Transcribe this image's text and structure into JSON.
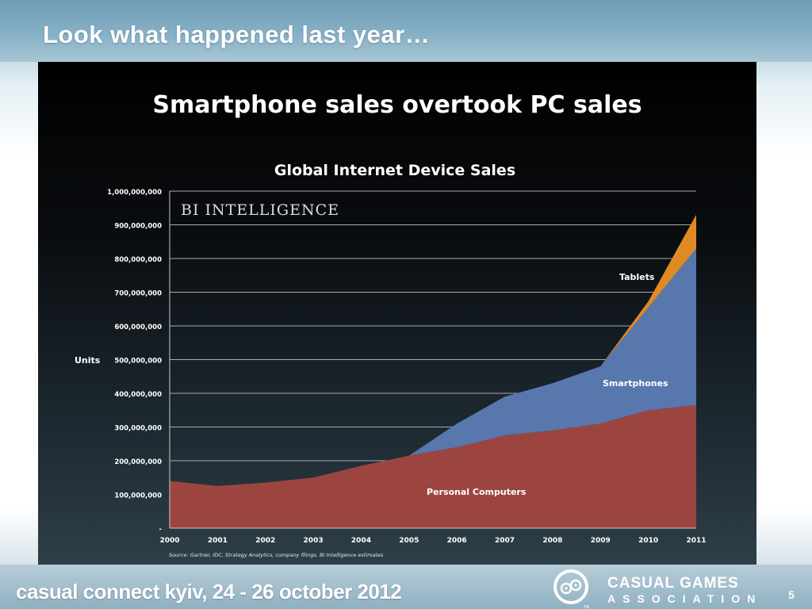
{
  "slide": {
    "title": "Look what happened last year…",
    "page_number": "5"
  },
  "footer": {
    "event": "casual connect kyiv, 24 - 26 october 2012",
    "org_line1": "CASUAL GAMES",
    "org_line2": "ASSOCIATION",
    "trademark": "TM"
  },
  "chart_data": {
    "type": "area",
    "headline": "Smartphone sales overtook PC sales",
    "title": "Global Internet Device Sales",
    "watermark": "BI INTELLIGENCE",
    "ylabel": "Units",
    "xlabel": "",
    "source": "Source: Gartner, IDC, Strategy Analytics, company filings, BI Intelligence estimates",
    "stacked": true,
    "ylim": [
      0,
      1000000000
    ],
    "y_ticks": [
      0,
      100000000,
      200000000,
      300000000,
      400000000,
      500000000,
      600000000,
      700000000,
      800000000,
      900000000,
      1000000000
    ],
    "y_tick_labels": [
      "-",
      "100,000,000",
      "200,000,000",
      "300,000,000",
      "400,000,000",
      "500,000,000",
      "600,000,000",
      "700,000,000",
      "800,000,000",
      "900,000,000",
      "1,000,000,000"
    ],
    "grid": true,
    "categories": [
      "2000",
      "2001",
      "2002",
      "2003",
      "2004",
      "2005",
      "2006",
      "2007",
      "2008",
      "2009",
      "2010",
      "2011"
    ],
    "series": [
      {
        "name": "Personal Computers",
        "color": "#9c4540",
        "values": [
          140000000,
          125000000,
          135000000,
          150000000,
          185000000,
          215000000,
          240000000,
          275000000,
          290000000,
          310000000,
          350000000,
          365000000
        ]
      },
      {
        "name": "Smartphones",
        "color": "#5877ad",
        "values": [
          0,
          0,
          0,
          0,
          0,
          0,
          70000000,
          115000000,
          140000000,
          170000000,
          305000000,
          465000000
        ]
      },
      {
        "name": "Tablets",
        "color": "#e08a25",
        "values": [
          0,
          0,
          0,
          0,
          0,
          0,
          0,
          0,
          0,
          0,
          18000000,
          100000000
        ]
      }
    ],
    "series_labels": [
      {
        "text": "Personal Computers"
      },
      {
        "text": "Smartphones"
      },
      {
        "text": "Tablets"
      }
    ]
  }
}
